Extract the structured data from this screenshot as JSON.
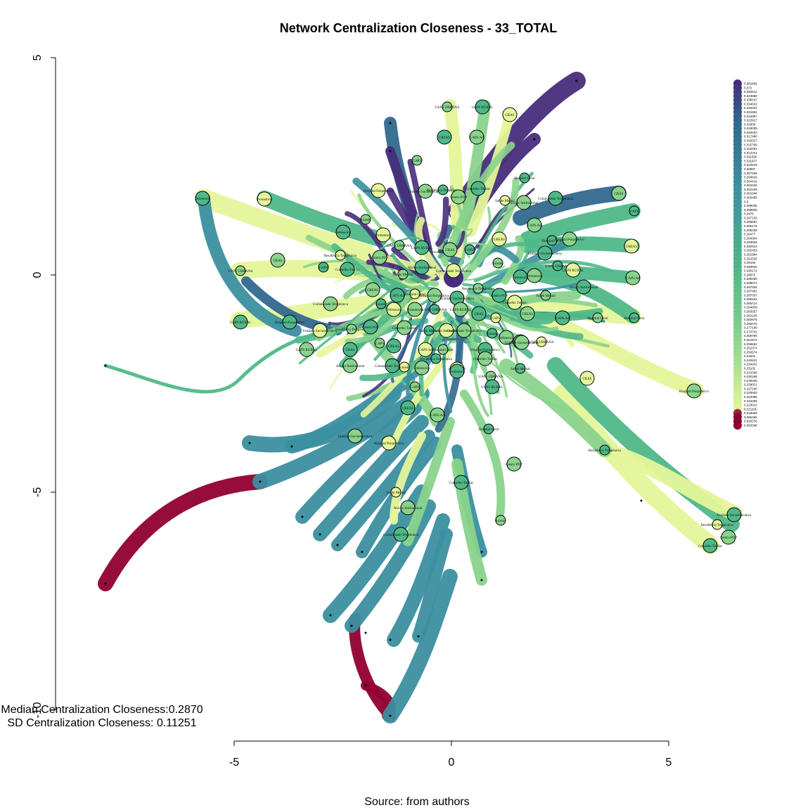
{
  "title": "Network Centralization Closeness - 33_TOTAL",
  "caption": "Source: from authors",
  "stats": {
    "median": "Median Centralization Closeness:0.2870",
    "sd": "SD Centralization Closeness: 0.11251"
  },
  "axes": {
    "x": {
      "ticks": [
        "-5",
        "0",
        "5"
      ]
    },
    "y": {
      "ticks": [
        "5",
        "0",
        "-5",
        "-10"
      ]
    }
  },
  "legend_values": [
    "0.382405",
    "0.372",
    "0.352612",
    "0.343688",
    "0.338347",
    "0.334632",
    "0.333333",
    "0.331581",
    "0.324697",
    "0.322917",
    "0.32008",
    "0.319039",
    "0.318433",
    "0.317486",
    "0.316327",
    "0.315789",
    "0.315254",
    "0.314721",
    "0.311558",
    "0.311037",
    "0.310518",
    "0.30897",
    "0.307438",
    "0.304919",
    "0.304419",
    "0.303426",
    "0.302439",
    "0.301948",
    "0.300485",
    "0.3",
    "0.299035",
    "0.298555",
    "0.2976",
    "0.297125",
    "0.296651",
    "0.296178",
    "0.295238",
    "0.29477",
    "0.294304",
    "0.293839",
    "0.292913",
    "0.292453",
    "0.291994",
    "0.291536",
    "0.29108",
    "0.290625",
    "0.290172",
    "0.28972",
    "0.289269",
    "0.288372",
    "0.287926",
    "0.287481",
    "0.287037",
    "0.286154",
    "0.285714",
    "0.284839",
    "0.283557",
    "0.283105",
    "0.282675",
    "0.282075",
    "0.277198",
    "0.274742",
    "0.268786",
    "0.261972",
    "0.259552",
    "0.252374",
    "0.250674",
    "0.24933",
    "0.240621",
    "0.234932",
    "0.23102",
    "0.231068",
    "0.230198",
    "0.229346",
    "0.229021",
    "0.227195",
    "0.226553",
    "0.224096",
    "0.223289",
    "0.223022",
    "0.221165",
    "0.216069",
    "0.095465",
    "0.093376",
    "0.093348"
  ],
  "node_labels": [
    "UAPS URBANA",
    "UAPS RURAL",
    "CRAS",
    "CAPS",
    "CREAS",
    "CAPS Ad",
    "Hospital Geral",
    "Hospital Psiquiátrico",
    "Unidade Socioeducativa",
    "Residência Terapêutica",
    "Centro POP",
    "Conselho Tutelar",
    "Saúde Mental",
    "Abrigo Institucional",
    "Comunidade Terapêutica",
    "Juizado",
    "Defensoria",
    "Promotoria"
  ],
  "colors": {
    "dark_purple": "#472D7B",
    "blue": "#31688E",
    "teal": "#3B8FA0",
    "green": "#4FB889",
    "light_green": "#8AD38C",
    "pale_yellow": "#E5F59A",
    "dark_red": "#900030"
  }
}
